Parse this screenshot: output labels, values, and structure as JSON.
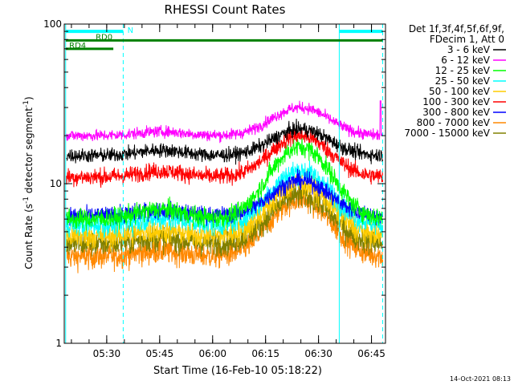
{
  "chart_data": {
    "type": "line",
    "title": "RHESSI Count Rates",
    "xlabel": "Start Time (16-Feb-10 05:18:22)",
    "ylabel_main": "Count Rate (s",
    "ylabel_sup1": "-1",
    "ylabel_mid": " detector segment",
    "ylabel_sup2": "-1",
    "ylabel_end": ")",
    "yscale": "log",
    "ylim": [
      1,
      100
    ],
    "y_ticks": [
      {
        "value": 1,
        "label": "1"
      },
      {
        "value": 10,
        "label": "10"
      },
      {
        "value": 100,
        "label": "100"
      }
    ],
    "x_range_min": [
      -0.4,
      90.6
    ],
    "x_ticks": [
      {
        "min": 11.63,
        "label": "05:30"
      },
      {
        "min": 26.63,
        "label": "05:45"
      },
      {
        "min": 41.63,
        "label": "06:00"
      },
      {
        "min": 56.63,
        "label": "06:15"
      },
      {
        "min": 71.63,
        "label": "06:30"
      },
      {
        "min": 86.63,
        "label": "06:45"
      }
    ],
    "legend_placement": "right",
    "legend_header": [
      "Det 1f,3f,4f,5f,6f,9f,",
      "FDecim 1, Att 0"
    ],
    "series": [
      {
        "name": "3 - 6 keV",
        "color": "#000000",
        "base": 15.0,
        "peak": 22.0,
        "noise": 0.05,
        "orbit": 0.08
      },
      {
        "name": "6 - 12 keV",
        "color": "#ff00ff",
        "base": 20.0,
        "peak": 30.0,
        "noise": 0.04,
        "orbit": 0.06
      },
      {
        "name": "12 - 25 keV",
        "color": "#00ff00",
        "base": 6.0,
        "peak": 17.0,
        "noise": 0.07,
        "orbit": 0.15
      },
      {
        "name": "25 - 50 keV",
        "color": "#00ffff",
        "base": 5.5,
        "peak": 12.0,
        "noise": 0.08,
        "orbit": 0.1
      },
      {
        "name": "50 - 100 keV",
        "color": "#ffcc00",
        "base": 4.7,
        "peak": 10.0,
        "noise": 0.09,
        "orbit": 0.08
      },
      {
        "name": "100 - 300 keV",
        "color": "#ff0000",
        "base": 11.0,
        "peak": 20.0,
        "noise": 0.06,
        "orbit": 0.09
      },
      {
        "name": "300 - 800 keV",
        "color": "#0000ff",
        "base": 6.3,
        "peak": 10.5,
        "noise": 0.06,
        "orbit": 0.08
      },
      {
        "name": "800 - 7000 keV",
        "color": "#ff8800",
        "base": 3.5,
        "peak": 8.0,
        "noise": 0.09,
        "orbit": 0.08
      },
      {
        "name": "7000 - 15000 keV",
        "color": "#808000",
        "base": 4.2,
        "peak": 8.5,
        "noise": 0.09,
        "orbit": 0.08
      }
    ],
    "flare_peak_min": 66.5,
    "spike_min": 89.2,
    "spike_value": 33,
    "solid_markers_min": [
      0.0,
      77.5
    ],
    "dashed_markers_min": [
      16.3,
      89.8
    ],
    "cyan_bars": [
      {
        "from": 0.0,
        "to": 16.3,
        "y": 90,
        "label": "N",
        "label_min": 17.5
      },
      {
        "from": 77.5,
        "to": 89.8,
        "y": 90,
        "label": "",
        "label_min": 0
      }
    ],
    "green_bar": {
      "from": 0.0,
      "to": 89.8,
      "y": 79,
      "label": "RD0",
      "label_min": 8.5
    },
    "green_short": {
      "from": 0.0,
      "to": 13.5,
      "y": 70,
      "label": "RD4",
      "label_min": 1.0
    },
    "footer_timestamp": "14-Oct-2021 08:13"
  },
  "colors": {
    "background": "#ffffff",
    "axes": "#000000",
    "marker": "#00ffff",
    "rd_bar": "#008000"
  }
}
